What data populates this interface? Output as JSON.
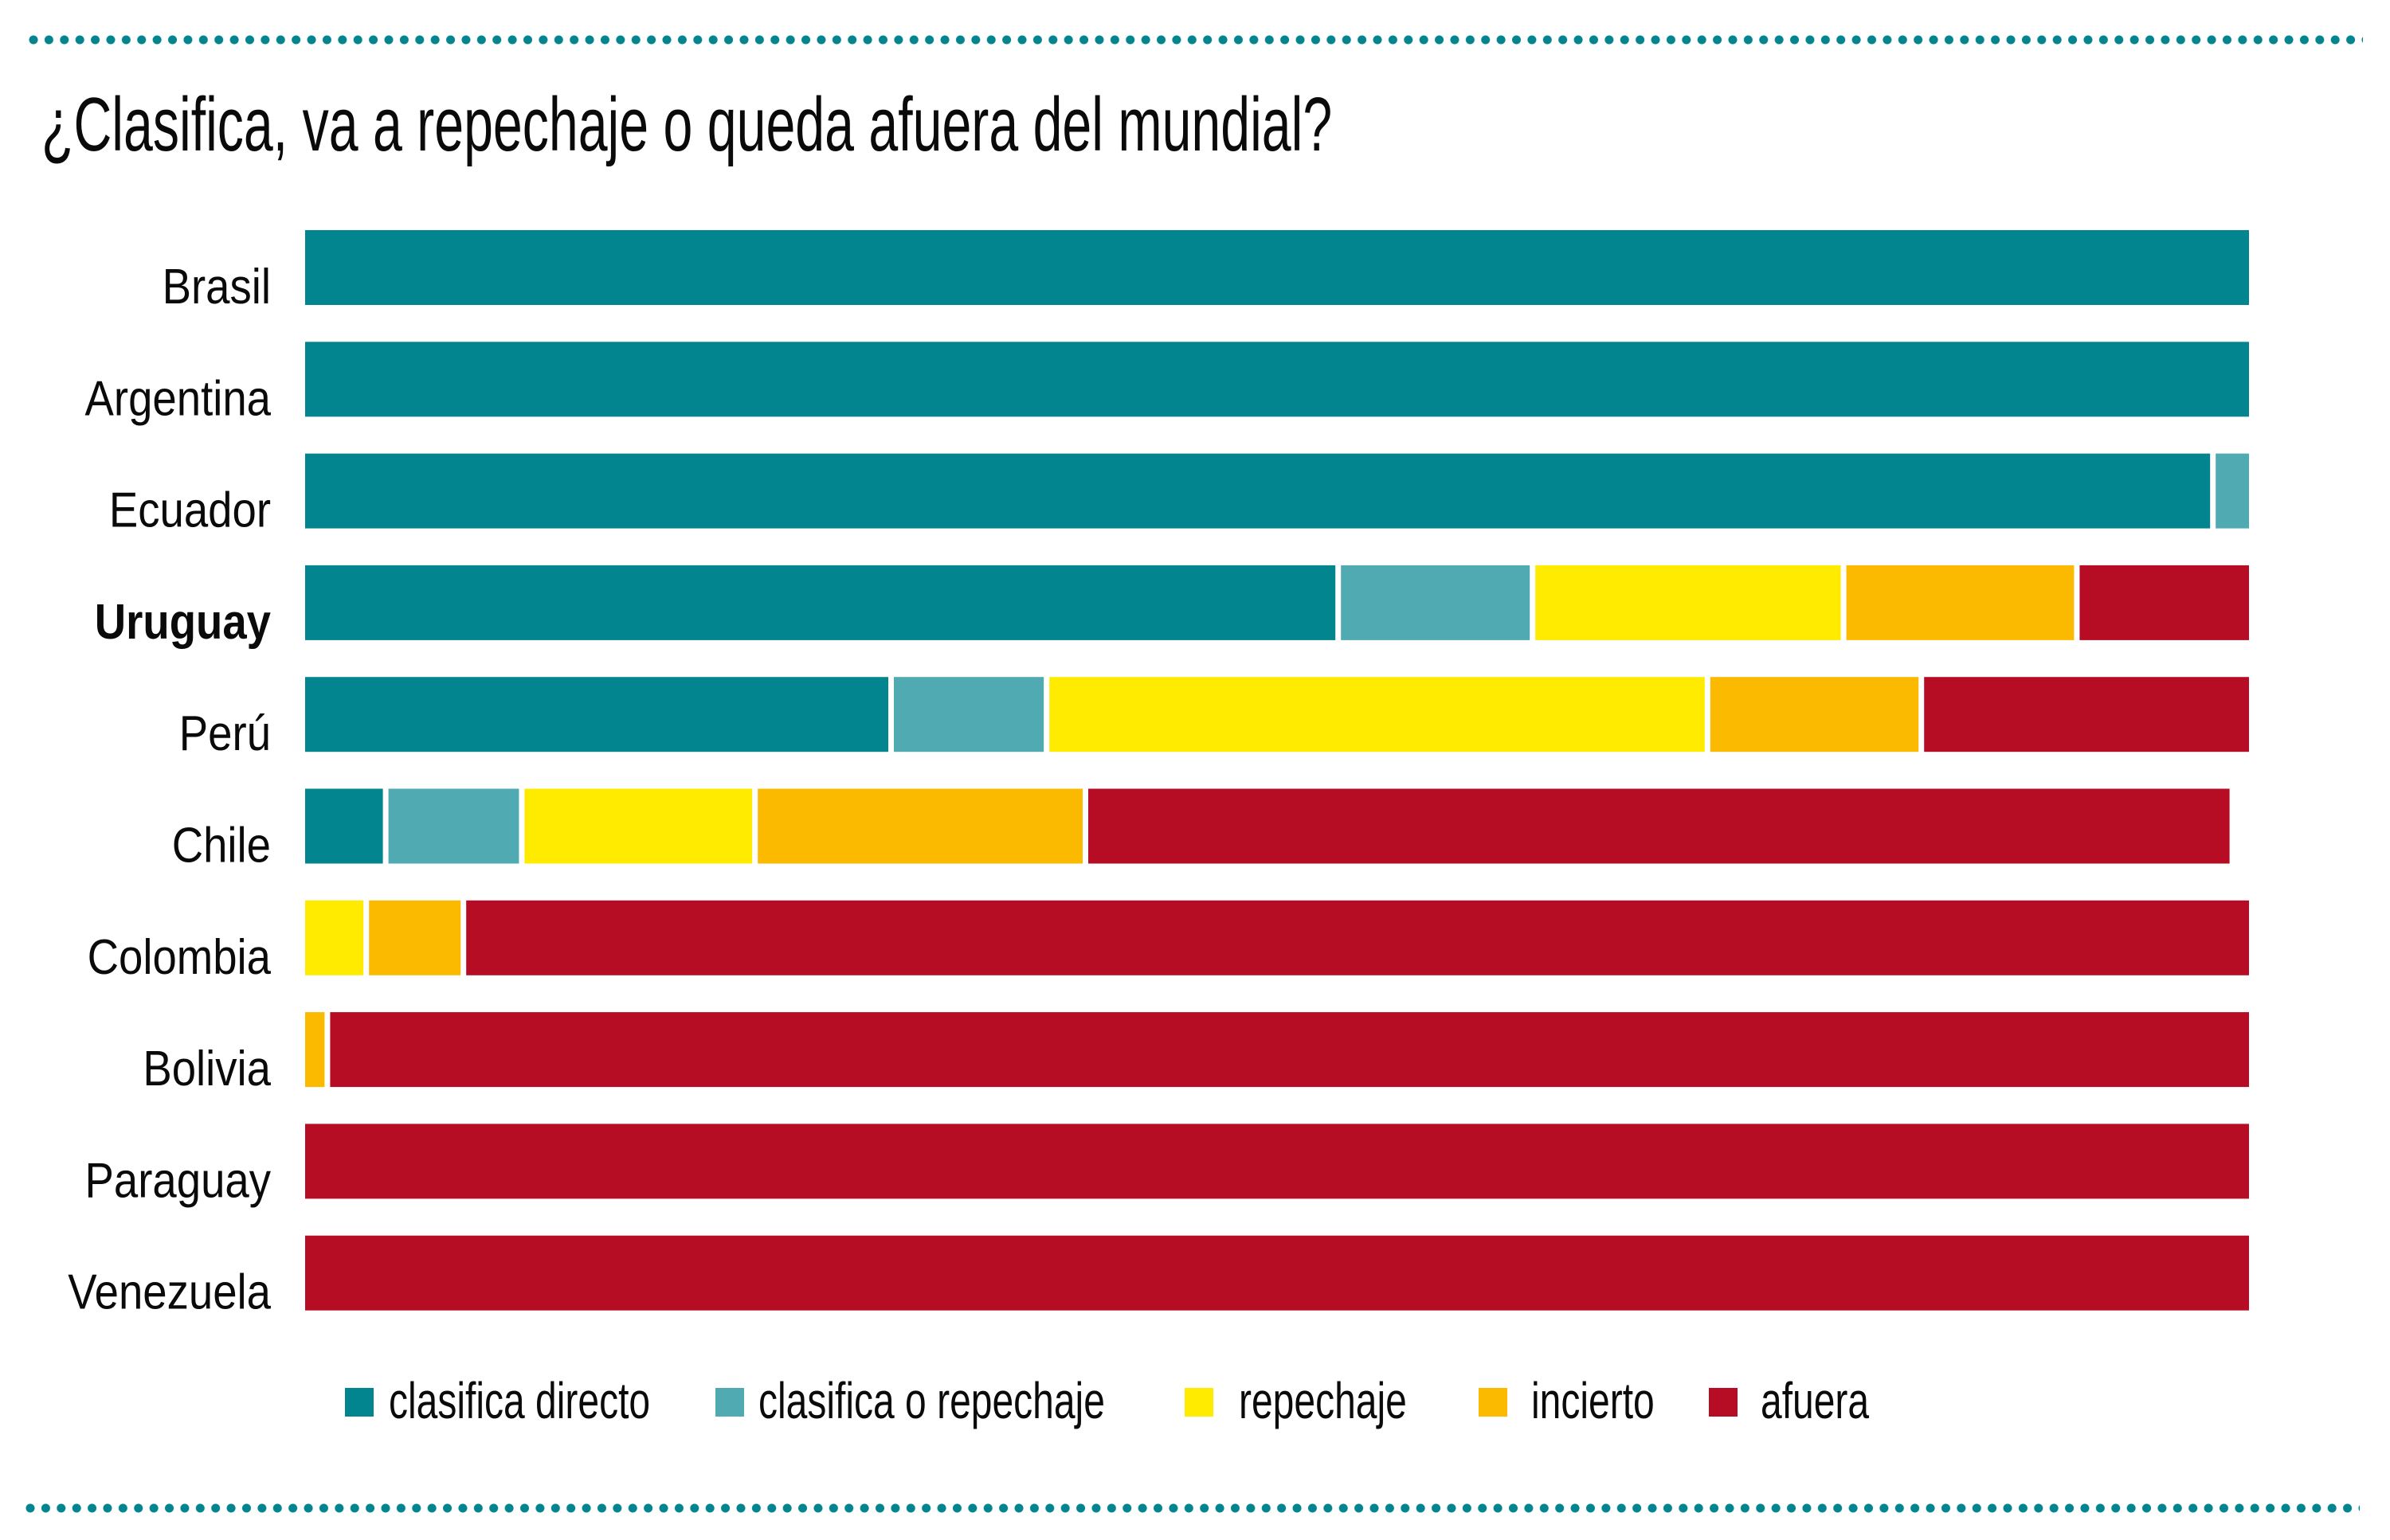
{
  "chart_data": {
    "type": "bar",
    "orientation": "horizontal",
    "stacked": true,
    "title": "¿Clasifica, va a repechaje o queda afuera del mundial?",
    "xlabel": "",
    "ylabel": "",
    "xlim": [
      0,
      100
    ],
    "grid": false,
    "legend_position": "bottom",
    "categories": [
      "Brasil",
      "Argentina",
      "Ecuador",
      "Uruguay",
      "Perú",
      "Chile",
      "Colombia",
      "Bolivia",
      "Paraguay",
      "Venezuela"
    ],
    "highlight_category": "Uruguay",
    "series": [
      {
        "name": "clasifica directo",
        "color": "#02858F",
        "values": [
          100,
          100,
          98,
          53,
          30,
          4,
          0,
          0,
          0,
          0
        ]
      },
      {
        "name": "clasifica o repechaje",
        "color": "#4FAAB2",
        "values": [
          0,
          0,
          2,
          10,
          8,
          7,
          0,
          0,
          0,
          0
        ]
      },
      {
        "name": "repechaje",
        "color": "#FFEB00",
        "values": [
          0,
          0,
          0,
          16,
          34,
          12,
          3,
          0,
          0,
          0
        ]
      },
      {
        "name": "incierto",
        "color": "#FBB900",
        "values": [
          0,
          0,
          0,
          12,
          11,
          17,
          5,
          1,
          0,
          0
        ]
      },
      {
        "name": "afuera",
        "color": "#B60D24",
        "values": [
          0,
          0,
          0,
          9,
          17,
          59,
          92,
          99,
          100,
          100
        ]
      }
    ]
  },
  "colors": {
    "accent_dots": "#02858F",
    "text": "#0a0a0a"
  }
}
